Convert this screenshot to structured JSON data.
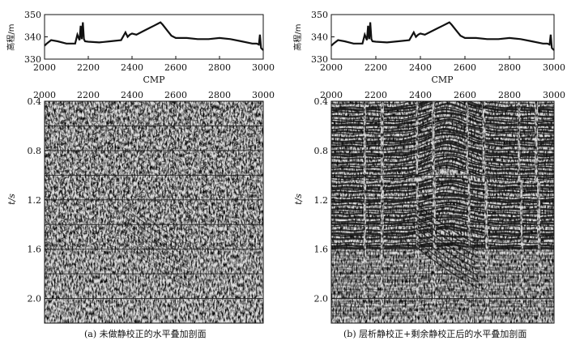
{
  "chart_data": [
    {
      "type": "line",
      "panel": "a-elevation",
      "ylabel": "高程/m",
      "xlabel": "CMP",
      "xlim": [
        2000,
        3000
      ],
      "ylim": [
        330,
        350
      ],
      "x_ticks": [
        "2000",
        "2200",
        "2400",
        "2600",
        "2800",
        "3000"
      ],
      "y_ticks": [
        "330",
        "340",
        "350"
      ],
      "x": [
        2000,
        2010,
        2030,
        2060,
        2100,
        2140,
        2150,
        2160,
        2165,
        2170,
        2175,
        2180,
        2185,
        2200,
        2250,
        2300,
        2350,
        2370,
        2380,
        2390,
        2400,
        2420,
        2450,
        2480,
        2500,
        2520,
        2530,
        2540,
        2560,
        2580,
        2600,
        2650,
        2700,
        2750,
        2800,
        2850,
        2900,
        2950,
        2970,
        2980,
        2985,
        2990,
        2995,
        3000
      ],
      "y": [
        336,
        337,
        338.5,
        338,
        337,
        337,
        341,
        338.5,
        345,
        339,
        346.5,
        339,
        338,
        337.8,
        337.5,
        338,
        338.5,
        342,
        340,
        341,
        341.5,
        341,
        342.5,
        344,
        345,
        346,
        346.5,
        345.5,
        343,
        340.5,
        339.5,
        339.5,
        339,
        339,
        339.5,
        339,
        338,
        337,
        337,
        336.5,
        341,
        335,
        334.5,
        334
      ]
    },
    {
      "type": "line",
      "panel": "b-elevation",
      "ylabel": "高程/m",
      "xlabel": "CMP",
      "xlim": [
        2000,
        3000
      ],
      "ylim": [
        330,
        350
      ],
      "x_ticks": [
        "2000",
        "2200",
        "2400",
        "2600",
        "2800",
        "3000"
      ],
      "y_ticks": [
        "330",
        "340",
        "350"
      ],
      "x": [
        2000,
        2010,
        2030,
        2060,
        2100,
        2140,
        2150,
        2160,
        2165,
        2170,
        2175,
        2180,
        2185,
        2200,
        2250,
        2300,
        2350,
        2370,
        2380,
        2390,
        2400,
        2420,
        2450,
        2480,
        2500,
        2520,
        2530,
        2540,
        2560,
        2580,
        2600,
        2650,
        2700,
        2750,
        2800,
        2850,
        2900,
        2950,
        2970,
        2980,
        2985,
        2990,
        2995,
        3000
      ],
      "y": [
        336,
        337,
        338.5,
        338,
        337,
        337,
        341,
        338.5,
        345,
        339,
        346.5,
        339,
        338,
        337.8,
        337.5,
        338,
        338.5,
        342,
        340,
        341,
        341.5,
        341,
        342.5,
        344,
        345,
        346,
        346.5,
        345.5,
        343,
        340.5,
        339.5,
        339.5,
        339,
        339,
        339.5,
        339,
        338,
        337,
        337,
        336.5,
        341,
        335,
        334.5,
        334
      ]
    },
    {
      "type": "heatmap",
      "panel": "a-section",
      "caption": "(a) 未做静校正的水平叠加剖面",
      "ylabel": "t/s",
      "xlim": [
        2000,
        3000
      ],
      "ylim": [
        0.4,
        2.2
      ],
      "x_ticks": [
        "2000",
        "2200",
        "2400",
        "2600",
        "2800",
        "3000"
      ],
      "y_ticks": [
        "0.4",
        "0.8",
        "1.2",
        "1.6",
        "2.0"
      ]
    },
    {
      "type": "heatmap",
      "panel": "b-section",
      "caption": "(b) 层析静校正+剩余静校正后的水平叠加剖面",
      "ylabel": "t/s",
      "xlim": [
        2000,
        3000
      ],
      "ylim": [
        0.4,
        2.2
      ],
      "x_ticks": [
        "2000",
        "2200",
        "2400",
        "2600",
        "2800",
        "3000"
      ],
      "y_ticks": [
        "0.4",
        "0.8",
        "1.2",
        "1.6",
        "2.0"
      ]
    }
  ]
}
